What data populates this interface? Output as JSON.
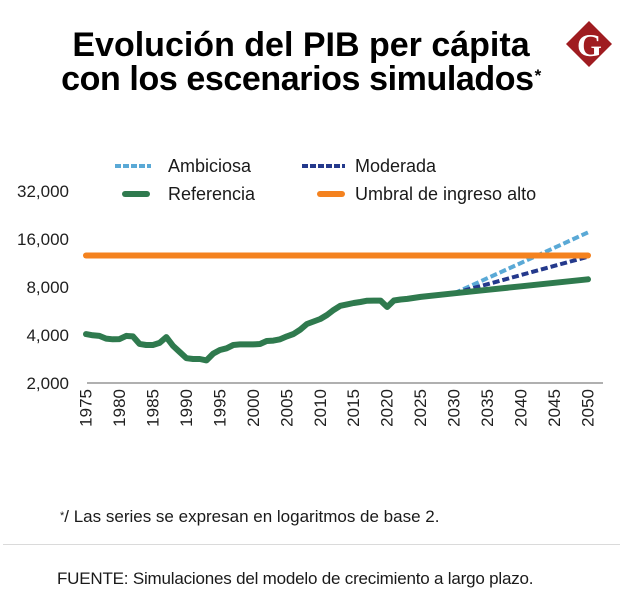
{
  "header": {
    "title_line1": "Evolución del PIB per cápita",
    "title_line2": "con los escenarios simulados",
    "title_asterisk": "*"
  },
  "logo": {
    "letter": "G",
    "color": "#9f1c20"
  },
  "chart_data": {
    "type": "line",
    "title": "Evolución del PIB per cápita con los escenarios simulados*",
    "xlabel": "",
    "ylabel": "",
    "y_scale": "log2",
    "xlim": [
      1975,
      2050
    ],
    "ylim": [
      2000,
      32000
    ],
    "xticks": [
      1975,
      1980,
      1985,
      1990,
      1995,
      2000,
      2005,
      2010,
      2015,
      2020,
      2025,
      2030,
      2035,
      2040,
      2045,
      2050
    ],
    "xtick_labels": [
      "1975",
      "1980",
      "1985",
      "1990",
      "1995",
      "2000",
      "2005",
      "2010",
      "2015",
      "2020",
      "2025",
      "2030",
      "2035",
      "2040",
      "2045",
      "2050"
    ],
    "yticks": [
      2000,
      4000,
      8000,
      16000,
      32000
    ],
    "ytick_labels": [
      "2,000",
      "4,000",
      "8,000",
      "16,000",
      "32,000"
    ],
    "grid": false,
    "legend_position": "top",
    "series": [
      {
        "name": "Ambiciosa",
        "color": "#5aa9d6",
        "style": "dashed",
        "x": [
          2030,
          2035,
          2040,
          2045,
          2050
        ],
        "values": [
          7300,
          9100,
          11330,
          14120,
          17600
        ]
      },
      {
        "name": "Moderada",
        "color": "#24398c",
        "style": "dashed",
        "x": [
          2030,
          2035,
          2040,
          2045,
          2050
        ],
        "values": [
          7300,
          8330,
          9510,
          10860,
          12400
        ]
      },
      {
        "name": "Referencia",
        "color": "#2f7a4e",
        "style": "solid",
        "x": [
          1975,
          1976,
          1977,
          1978,
          1979,
          1980,
          1981,
          1982,
          1983,
          1984,
          1985,
          1986,
          1987,
          1988,
          1989,
          1990,
          1991,
          1992,
          1993,
          1994,
          1995,
          1996,
          1997,
          1998,
          1999,
          2000,
          2001,
          2002,
          2003,
          2004,
          2005,
          2006,
          2007,
          2008,
          2009,
          2010,
          2011,
          2012,
          2013,
          2014,
          2015,
          2016,
          2017,
          2018,
          2019,
          2020,
          2021,
          2022,
          2023,
          2024,
          2025,
          2030,
          2035,
          2040,
          2045,
          2050
        ],
        "values": [
          4050,
          3980,
          3950,
          3800,
          3760,
          3770,
          3950,
          3920,
          3520,
          3460,
          3460,
          3570,
          3880,
          3420,
          3130,
          2860,
          2830,
          2830,
          2770,
          3060,
          3220,
          3300,
          3460,
          3490,
          3490,
          3490,
          3510,
          3670,
          3690,
          3760,
          3920,
          4060,
          4320,
          4690,
          4860,
          5040,
          5340,
          5750,
          6100,
          6220,
          6350,
          6440,
          6560,
          6570,
          6570,
          5990,
          6580,
          6680,
          6740,
          6830,
          6930,
          7300,
          7680,
          8080,
          8500,
          8940
        ]
      },
      {
        "name": "Umbral de ingreso alto",
        "color": "#f4821f",
        "style": "solid",
        "x": [
          1975,
          2050
        ],
        "values": [
          12600,
          12600
        ]
      }
    ]
  },
  "footnote": {
    "marker": "*",
    "text": "/ Las series se expresan en logaritmos de base 2."
  },
  "source": {
    "text": "FUENTE: Simulaciones del modelo de crecimiento a largo plazo."
  }
}
